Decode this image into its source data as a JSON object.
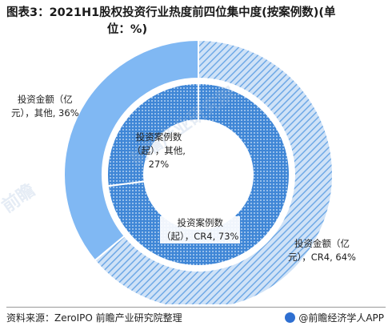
{
  "title": {
    "line1": "图表3：2021H1股权投资行业热度前四位集中度(按案例数)(单",
    "line2": "位：%)"
  },
  "chart_data": {
    "type": "pie",
    "subtype": "nested-donut",
    "rings": [
      {
        "ring": "outer",
        "measure": "投资金额（亿元）",
        "slices": [
          {
            "name": "CR4",
            "value": 64,
            "label_line1": "投资金额（亿",
            "label_line2": "元），CR4, 64%",
            "color": "#6fa9e6",
            "pattern": "diagonal-hatch"
          },
          {
            "name": "其他",
            "value": 36,
            "label_line1": "投资金额（亿",
            "label_line2": "元），其他, 36%",
            "color": "#80b8f3",
            "pattern": "solid"
          }
        ]
      },
      {
        "ring": "inner",
        "measure": "投资案例数（起）",
        "slices": [
          {
            "name": "CR4",
            "value": 73,
            "label_line1": "投资案例数",
            "label_line2": "（起），CR4, 73%",
            "color": "#3f86d6",
            "pattern": "dotted"
          },
          {
            "name": "其他",
            "value": 27,
            "label_line1": "投资案例数",
            "label_line2": "（起），其他,",
            "label_line3": "27%",
            "color": "#3a86d4",
            "pattern": "dotted"
          }
        ]
      }
    ],
    "legend": "none"
  },
  "footer": {
    "source": "资料来源：ZeroIPO 前瞻产业研究院整理",
    "brand": "@前瞻经济学人APP"
  },
  "watermarks": [
    "前瞻产业研究院",
    "前瞻"
  ]
}
